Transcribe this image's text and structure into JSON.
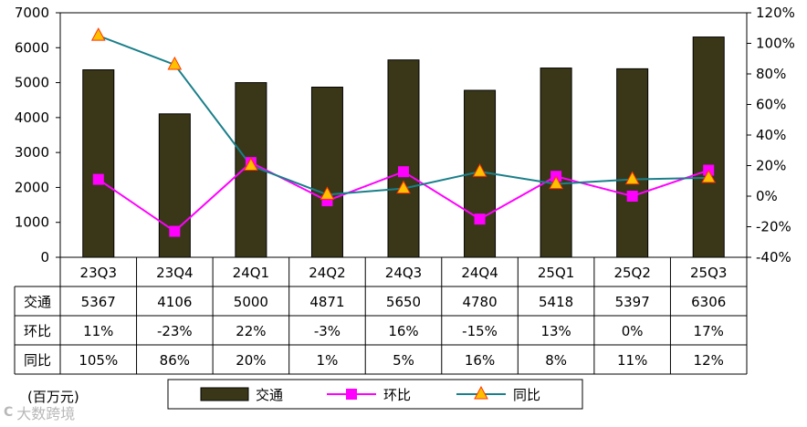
{
  "chart_data": {
    "type": "bar",
    "categories": [
      "23Q3",
      "23Q4",
      "24Q1",
      "24Q2",
      "24Q3",
      "24Q4",
      "25Q1",
      "25Q2",
      "25Q3"
    ],
    "bar_series": {
      "name": "交通",
      "values": [
        5367,
        4106,
        5000,
        4871,
        5650,
        4780,
        5418,
        5397,
        6306
      ],
      "color": "#3a3718"
    },
    "line_series": [
      {
        "name": "环比",
        "values": [
          11,
          -23,
          22,
          -3,
          16,
          -15,
          13,
          0,
          17
        ],
        "labels": [
          "11%",
          "-23%",
          "22%",
          "-3%",
          "16%",
          "-15%",
          "13%",
          "0%",
          "17%"
        ],
        "color": "#ff00ff",
        "marker": "square"
      },
      {
        "name": "同比",
        "values": [
          105,
          86,
          20,
          1,
          5,
          16,
          8,
          11,
          12
        ],
        "labels": [
          "105%",
          "86%",
          "20%",
          "1%",
          "5%",
          "16%",
          "8%",
          "11%",
          "12%"
        ],
        "color": "#1a7f8a",
        "marker": "triangle",
        "marker_fill": "#ffc000",
        "marker_stroke": "#ff3300"
      }
    ],
    "y_left": {
      "min": 0,
      "max": 7000,
      "step": 1000,
      "ticks": [
        "0",
        "1000",
        "2000",
        "3000",
        "4000",
        "5000",
        "6000",
        "7000"
      ]
    },
    "y_right": {
      "min": -40,
      "max": 120,
      "step": 20,
      "ticks": [
        "-40%",
        "-20%",
        "0%",
        "20%",
        "40%",
        "60%",
        "80%",
        "100%",
        "120%"
      ]
    },
    "unit_label": "(百万元)",
    "legend_position": "bottom"
  },
  "watermark": {
    "mark": "C",
    "text": "大数跨境"
  }
}
